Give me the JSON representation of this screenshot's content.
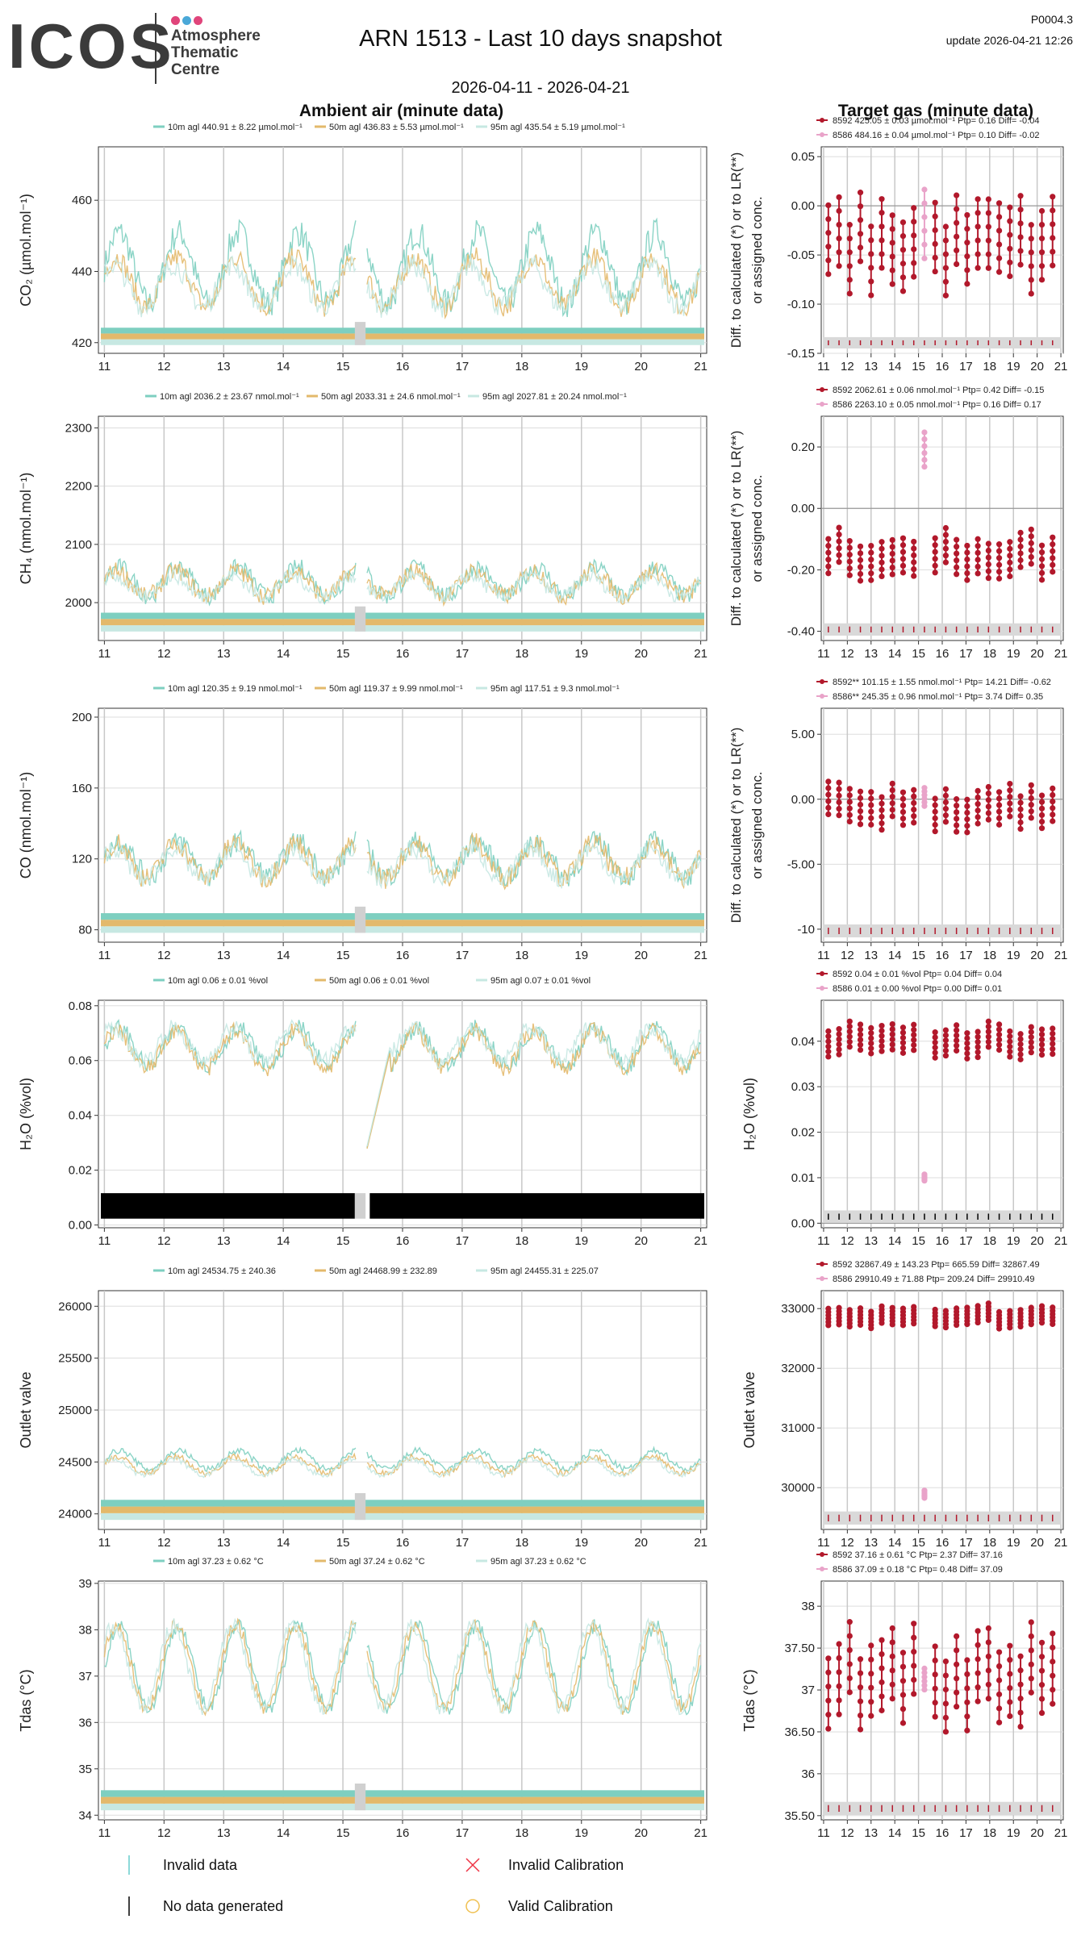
{
  "header": {
    "logo_text": "ICOS",
    "logo_sub": [
      "Atmosphere",
      "Thematic",
      "Centre"
    ],
    "logo_dot_colors": [
      "#e0457b",
      "#4aa8d8",
      "#e0457b"
    ],
    "title": "ARN 1513 - Last 10 days snapshot",
    "date_range": "2026-04-11 - 2026-04-21",
    "code": "P0004.3",
    "update": "update  2026-04-21 12:26",
    "left_section_title": "Ambient air (minute data)",
    "right_section_title": "Target gas (minute data)"
  },
  "colors": {
    "h10": "#7ecfc0",
    "h50": "#e3b96b",
    "h95": "#c7e8e2",
    "t8592": "#b2182b",
    "t8586": "#e9a3c9",
    "grid": "#dddddd"
  },
  "bottom_legend": {
    "invalid_data": "Invalid data",
    "no_data": "No data generated",
    "invalid_cal": "Invalid Calibration",
    "valid_cal": "Valid Calibration"
  },
  "chart_data": [
    {
      "id": "co2",
      "type": "line",
      "ylabel": "CO₂ (µmol.mol⁻¹)",
      "ylim": [
        417,
        475
      ],
      "yticks": [
        420,
        440,
        460
      ],
      "xticks": [
        11,
        12,
        13,
        14,
        15,
        16,
        17,
        18,
        19,
        20,
        21
      ],
      "xlim": [
        10.9,
        21.1
      ],
      "legend": [
        "10m agl 440.91 ± 8.22 µmol.mol⁻¹",
        "50m agl 436.83 ± 5.53 µmol.mol⁻¹",
        "95m agl 435.54 ± 5.19 µmol.mol⁻¹"
      ],
      "series": [
        {
          "name": "10m",
          "base": 441,
          "amp": 10,
          "noise": 4
        },
        {
          "name": "50m",
          "base": 437,
          "amp": 7,
          "noise": 3
        },
        {
          "name": "95m",
          "base": 436,
          "amp": 6,
          "noise": 3
        }
      ],
      "target": {
        "ylabel": "Diff. to calculated (*) or to LR(**) or assigned conc.",
        "ylim": [
          -0.15,
          0.06
        ],
        "yticks": [
          -0.15,
          -0.1,
          -0.05,
          0.0,
          0.05
        ],
        "xticks": [
          11,
          12,
          13,
          14,
          15,
          16,
          17,
          18,
          19,
          20,
          21
        ],
        "legend": [
          "8592 425.05 ± 0.03 µmol.mol⁻¹ Ptp= 0.16 Diff= -0.04",
          "8586 484.16 ± 0.04 µmol.mol⁻¹ Ptp= 0.10 Diff= -0.02"
        ],
        "center8592": -0.04,
        "spread8592": 0.05,
        "center8586": -0.02,
        "spread8586": 0.05
      }
    },
    {
      "id": "ch4",
      "type": "line",
      "ylabel": "CH₄ (nmol.mol⁻¹)",
      "ylim": [
        1935,
        2320
      ],
      "yticks": [
        2000,
        2100,
        2200,
        2300
      ],
      "xticks": [
        11,
        12,
        13,
        14,
        15,
        16,
        17,
        18,
        19,
        20,
        21
      ],
      "xlim": [
        10.9,
        21.1
      ],
      "legend": [
        "10m agl 2036.2 ± 23.67 nmol.mol⁻¹",
        "50m agl 2033.31 ± 24.6 nmol.mol⁻¹",
        "95m agl 2027.81 ± 20.24 nmol.mol⁻¹"
      ],
      "series": [
        {
          "name": "10m",
          "base": 2036,
          "amp": 25,
          "noise": 15
        },
        {
          "name": "50m",
          "base": 2033,
          "amp": 22,
          "noise": 15
        },
        {
          "name": "95m",
          "base": 2028,
          "amp": 18,
          "noise": 12
        }
      ],
      "target": {
        "ylabel": "Diff. to calculated (*) or to LR(**) or assigned conc.",
        "ylim": [
          -0.43,
          0.3
        ],
        "yticks": [
          -0.4,
          -0.2,
          0.0,
          0.2
        ],
        "xticks": [
          11,
          12,
          13,
          14,
          15,
          16,
          17,
          18,
          19,
          20,
          21
        ],
        "legend": [
          "8592 2062.61 ± 0.06 nmol.mol⁻¹ Ptp= 0.42 Diff= -0.15",
          "8586 2263.10 ± 0.05 nmol.mol⁻¹ Ptp= 0.16 Diff= 0.17"
        ],
        "center8592": -0.15,
        "spread8592": 0.08,
        "center8586": 0.17,
        "spread8586": 0.08
      }
    },
    {
      "id": "co",
      "type": "line",
      "ylabel": "CO (nmol.mol⁻¹)",
      "ylim": [
        73,
        205
      ],
      "yticks": [
        80,
        120,
        160,
        200
      ],
      "xticks": [
        11,
        12,
        13,
        14,
        15,
        16,
        17,
        18,
        19,
        20,
        21
      ],
      "xlim": [
        10.9,
        21.1
      ],
      "legend": [
        "10m agl 120.35 ± 9.19 nmol.mol⁻¹",
        "50m agl 119.37 ± 9.99 nmol.mol⁻¹",
        "95m agl 117.51 ± 9.3 nmol.mol⁻¹"
      ],
      "series": [
        {
          "name": "10m",
          "base": 120,
          "amp": 10,
          "noise": 6
        },
        {
          "name": "50m",
          "base": 119,
          "amp": 10,
          "noise": 6
        },
        {
          "name": "95m",
          "base": 117,
          "amp": 9,
          "noise": 5
        }
      ],
      "target": {
        "ylabel": "Diff. to calculated (*) or to LR(**) or assigned conc.",
        "ylim": [
          -11,
          7
        ],
        "yticks": [
          -10,
          -5,
          0,
          5
        ],
        "xticks": [
          11,
          12,
          13,
          14,
          15,
          16,
          17,
          18,
          19,
          20,
          21
        ],
        "legend": [
          "8592** 101.15 ± 1.55 nmol.mol⁻¹ Ptp= 14.21 Diff= -0.62",
          "8586** 245.35 ± 0.96 nmol.mol⁻¹ Ptp= 3.74 Diff= 0.35"
        ],
        "center8592": -0.6,
        "spread8592": 1.8,
        "center8586": 0.35,
        "spread8586": 1.0
      }
    },
    {
      "id": "h2o",
      "type": "line",
      "ylabel": "H₂O (%vol)",
      "ylim": [
        -0.001,
        0.082
      ],
      "yticks": [
        0.0,
        0.02,
        0.04,
        0.06,
        0.08
      ],
      "xticks": [
        11,
        12,
        13,
        14,
        15,
        16,
        17,
        18,
        19,
        20,
        21
      ],
      "xlim": [
        10.9,
        21.1
      ],
      "legend": [
        "10m agl 0.06 ± 0.01 %vol",
        "50m agl 0.06 ± 0.01 %vol",
        "95m agl 0.07 ± 0.01 %vol"
      ],
      "series": [
        {
          "name": "10m",
          "base": 0.065,
          "amp": 0.007,
          "noise": 0.003
        },
        {
          "name": "50m",
          "base": 0.064,
          "amp": 0.007,
          "noise": 0.003
        },
        {
          "name": "95m",
          "base": 0.066,
          "amp": 0.006,
          "noise": 0.003
        }
      ],
      "target": {
        "ylabel": "H₂O (%vol)",
        "ylim": [
          -0.001,
          0.049
        ],
        "yticks": [
          0.0,
          0.01,
          0.02,
          0.03,
          0.04
        ],
        "xticks": [
          11,
          12,
          13,
          14,
          15,
          16,
          17,
          18,
          19,
          20,
          21
        ],
        "legend": [
          "8592 0.04 ± 0.01 %vol Ptp= 0.04 Diff= 0.04",
          "8586 0.01 ± 0.00 %vol Ptp= 0.00 Diff= 0.01"
        ],
        "center8592": 0.04,
        "spread8592": 0.004,
        "center8586": 0.01,
        "spread8586": 0.001
      }
    },
    {
      "id": "valve",
      "type": "line",
      "ylabel": "Outlet valve",
      "ylim": [
        23850,
        26150
      ],
      "yticks": [
        24000,
        24500,
        25000,
        25500,
        26000
      ],
      "xticks": [
        11,
        12,
        13,
        14,
        15,
        16,
        17,
        18,
        19,
        20,
        21
      ],
      "xlim": [
        10.9,
        21.1
      ],
      "legend": [
        "10m agl 24534.75 ± 240.36",
        "50m agl 24468.99 ± 232.89",
        "95m agl 24455.31 ± 225.07"
      ],
      "series": [
        {
          "name": "10m",
          "base": 24520,
          "amp": 90,
          "noise": 30
        },
        {
          "name": "50m",
          "base": 24470,
          "amp": 80,
          "noise": 30
        },
        {
          "name": "95m",
          "base": 24450,
          "amp": 80,
          "noise": 25
        }
      ],
      "target": {
        "ylabel": "Outlet valve",
        "ylim": [
          29300,
          33300
        ],
        "yticks": [
          30000,
          31000,
          32000,
          33000
        ],
        "xticks": [
          11,
          12,
          13,
          14,
          15,
          16,
          17,
          18,
          19,
          20,
          21
        ],
        "legend": [
          "8592 32867.49 ± 143.23  Ptp= 665.59 Diff= 32867.49",
          "8586 29910.49 ± 71.88  Ptp= 209.24 Diff= 29910.49"
        ],
        "center8592": 32870,
        "spread8592": 200,
        "center8586": 29910,
        "spread8586": 90
      }
    },
    {
      "id": "tdas",
      "type": "line",
      "ylabel": "Tdas (°C)",
      "ylim": [
        33.9,
        39.05
      ],
      "yticks": [
        34,
        35,
        36,
        37,
        38,
        39
      ],
      "xticks": [
        11,
        12,
        13,
        14,
        15,
        16,
        17,
        18,
        19,
        20,
        21
      ],
      "xlim": [
        10.9,
        21.1
      ],
      "legend": [
        "10m agl 37.23 ± 0.62 °C",
        "50m agl 37.24 ± 0.62 °C",
        "95m agl 37.23 ± 0.62 °C"
      ],
      "series": [
        {
          "name": "10m",
          "base": 37.2,
          "amp": 0.9,
          "noise": 0.15
        },
        {
          "name": "50m",
          "base": 37.2,
          "amp": 0.9,
          "noise": 0.15
        },
        {
          "name": "95m",
          "base": 37.2,
          "amp": 0.9,
          "noise": 0.15
        }
      ],
      "target": {
        "ylabel": "Tdas (°C)",
        "ylim": [
          35.45,
          38.3
        ],
        "yticks": [
          35.5,
          36.0,
          36.5,
          37.0,
          37.5,
          38.0
        ],
        "xticks": [
          11,
          12,
          13,
          14,
          15,
          16,
          17,
          18,
          19,
          20,
          21
        ],
        "legend": [
          "8592 37.16 ± 0.61 °C Ptp= 2.37 Diff= 37.16",
          "8586 37.09 ± 0.18 °C Ptp= 0.48 Diff= 37.09"
        ],
        "center8592": 37.16,
        "spread8592": 0.6,
        "center8586": 37.09,
        "spread8586": 0.18
      }
    }
  ]
}
